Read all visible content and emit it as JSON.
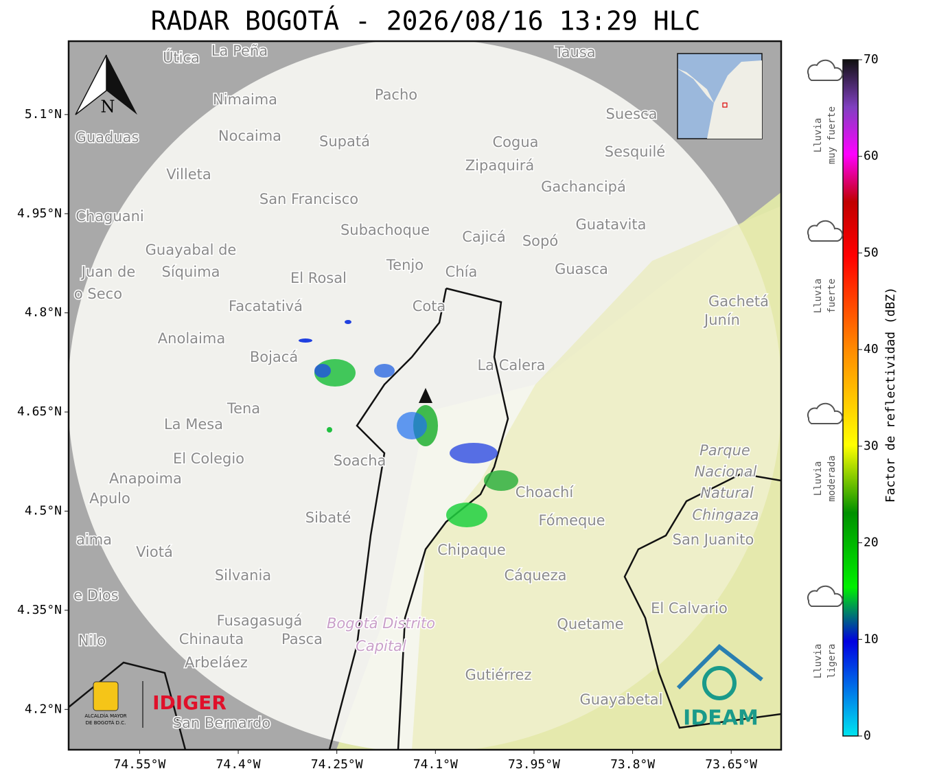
{
  "chart_data": {
    "type": "radar-map",
    "title": "RADAR BOGOTÁ - 2026/08/16 13:29 HLC",
    "xlim": [
      -74.658,
      -73.574
    ],
    "ylim": [
      4.139,
      5.211
    ],
    "xticks": [
      {
        "value": -74.55,
        "label": "74.55°W"
      },
      {
        "value": -74.4,
        "label": "74.4°W"
      },
      {
        "value": -74.25,
        "label": "74.25°W"
      },
      {
        "value": -74.1,
        "label": "74.1°W"
      },
      {
        "value": -73.95,
        "label": "73.95°W"
      },
      {
        "value": -73.8,
        "label": "73.8°W"
      },
      {
        "value": -73.65,
        "label": "73.65°W"
      }
    ],
    "yticks": [
      {
        "value": 5.1,
        "label": "5.1°N"
      },
      {
        "value": 4.95,
        "label": "4.95°N"
      },
      {
        "value": 4.8,
        "label": "4.8°N"
      },
      {
        "value": 4.65,
        "label": "4.65°N"
      },
      {
        "value": 4.5,
        "label": "4.5°N"
      },
      {
        "value": 4.35,
        "label": "4.35°N"
      },
      {
        "value": 4.2,
        "label": "4.2°N"
      }
    ],
    "grid": true,
    "colorbar": {
      "label": "Factor de reflectividad (dBZ)",
      "lim": [
        0,
        70
      ],
      "ticks": [
        0,
        10,
        20,
        30,
        40,
        50,
        60,
        70
      ]
    },
    "rain_labels": [
      [
        "Lluvia",
        "muy fuerte"
      ],
      [
        "Lluvia",
        "fuerte"
      ],
      [
        "Lluvia",
        "moderada"
      ],
      [
        "Lluvia",
        "ligera"
      ]
    ],
    "north": "N",
    "logos": {
      "idiger": "IDIGER",
      "ideam": "IDEAM",
      "alcaldia": [
        "ALCALDÍA MAYOR",
        "DE BOGOTÁ D.C."
      ]
    },
    "places": [
      "Útica",
      "La Peña",
      "Tausa",
      "Pacho",
      "Nimaima",
      "Suesca",
      "Guaduas",
      "Nocaima",
      "Supatá",
      "Cogua",
      "Sesquilé",
      "Zipaquirá",
      "Villeta",
      "Gachancipá",
      "San Francisco",
      "Chaguani",
      "Guatavita",
      "Subachoque",
      "Cajicá",
      "Sopó",
      "Guayabal de",
      "Síquima",
      "Tenjo",
      "Juan de",
      "Guasca",
      "Chía",
      "El Rosal",
      "o Seco",
      "Gachetá",
      "Facatativá",
      "Cota",
      "Junín",
      "Anolaima",
      "Bojacá",
      "La Calera",
      "Tena",
      "La Mesa",
      "Parque",
      "El Colegio",
      "Soacha",
      "Anapoima",
      "Nacional",
      "Choachí",
      "Apulo",
      "Natural",
      "Chingaza",
      "Sibaté",
      "Fómeque",
      "San Juanito",
      "aima",
      "Viotá",
      "Chipaque",
      "Silvania",
      "Cáqueza",
      "e Dios",
      "El Calvario",
      "Fusagasugá",
      "Quetame",
      "Bogotá Distrito",
      "Nilo",
      "Chinauta",
      "Pasca",
      "Capital",
      "Arbeláez",
      "Gutiérrez",
      "Guayabetal",
      "San Bernardo"
    ]
  }
}
